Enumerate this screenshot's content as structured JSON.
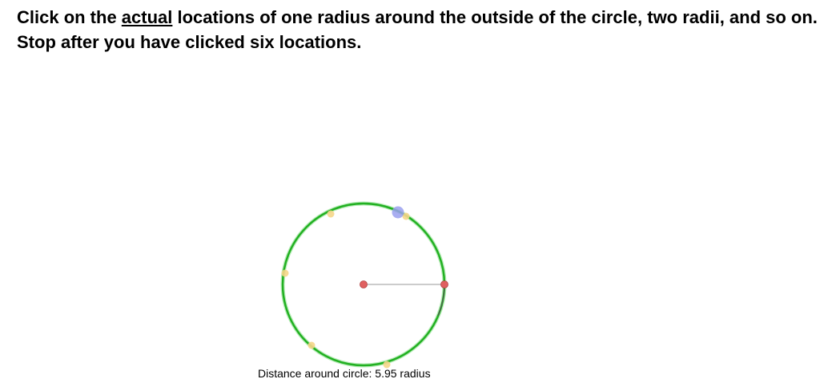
{
  "instructions": {
    "part1": "Click on the ",
    "emphasis": "actual",
    "part2": " locations of one radius around the outside of the circle, two radii, and so on. Stop after you have clicked six locations."
  },
  "readout": {
    "label": "Distance around circle: ",
    "value": "5.95",
    "unit": " radius"
  },
  "colors": {
    "circle_stroke": "#22b022",
    "circle_highlight": "#7ddc7d",
    "center_marker": "#e06060",
    "click_marker": "#f5d68a",
    "cursor_marker": "#9aa0ee",
    "radius_line": "#999999"
  },
  "icons": {
    "center": "center-point-icon",
    "radius_end": "radius-endpoint-icon",
    "cursor": "cursor-marker-icon",
    "click": "click-marker-icon"
  }
}
